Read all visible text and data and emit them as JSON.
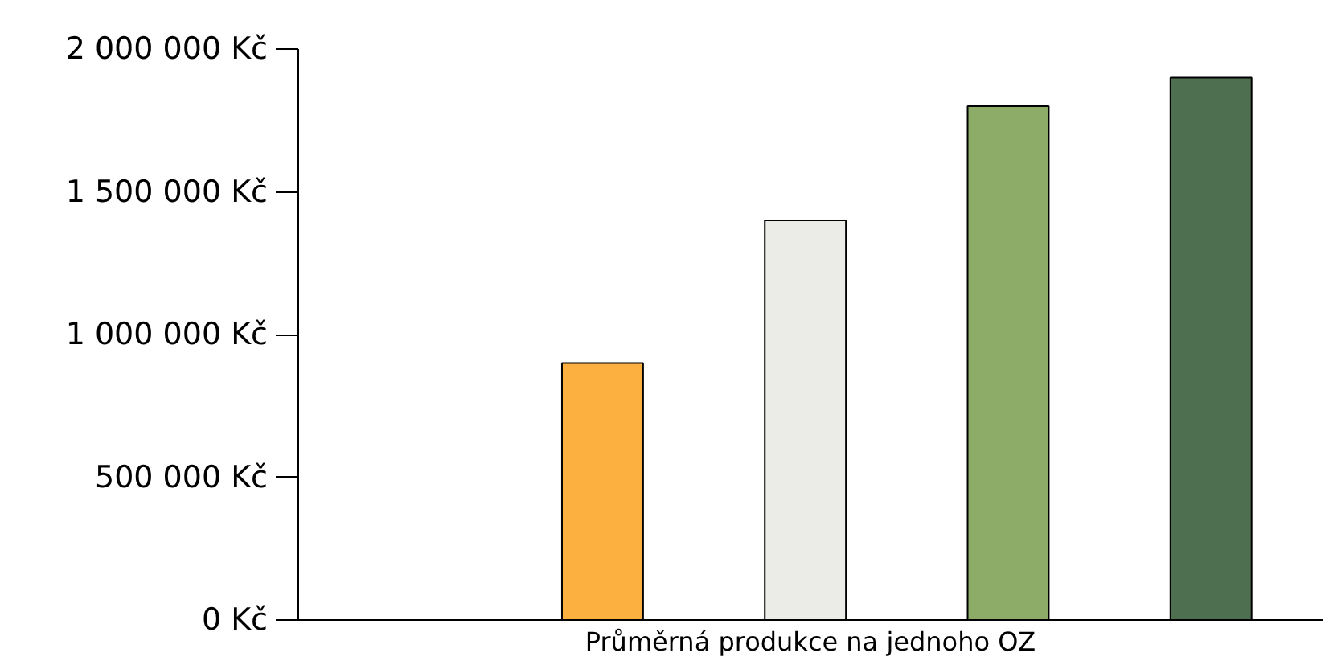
{
  "chart_data": {
    "type": "bar",
    "xlabel": "Průměrná produkce na jednoho OZ",
    "categories": [
      null,
      null,
      null,
      null,
      null
    ],
    "values": [
      null,
      900000,
      1400000,
      1800000,
      1900000
    ],
    "colors": [
      "#ffffff",
      "#fbb040",
      "#ebebe7",
      "#8dac68",
      "#4e7050"
    ],
    "ylim": [
      0,
      2000000
    ],
    "yticks": [
      {
        "value": 0,
        "label": "0 Kč"
      },
      {
        "value": 500000,
        "label": "500 000 Kč"
      },
      {
        "value": 1000000,
        "label": "1 000 000 Kč"
      },
      {
        "value": 1500000,
        "label": "1 500 000 Kč"
      },
      {
        "value": 2000000,
        "label": "2 000 000 Kč"
      }
    ],
    "grid": false
  }
}
